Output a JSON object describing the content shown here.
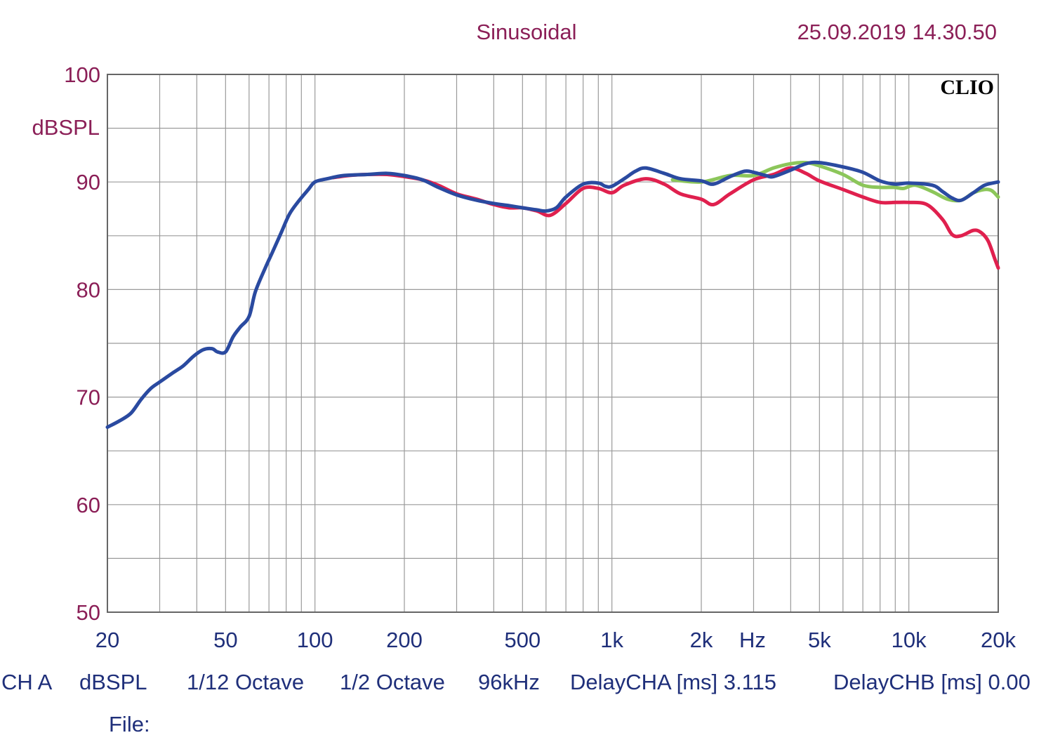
{
  "header": {
    "mode": "Sinusoidal",
    "timestamp": "25.09.2019 14.30.50"
  },
  "brand": "CLIO",
  "footer": {
    "items": [
      "CH A",
      "dBSPL",
      "1/12 Octave",
      "1/2 Octave",
      "96kHz",
      "DelayCHA [ms] 3.115",
      "DelayCHB [ms] 0.00"
    ],
    "file_label": "File:"
  },
  "chart_data": {
    "type": "line",
    "ylabel": "dBSPL",
    "xlabel": "Hz",
    "x_scale": "log",
    "xlim": [
      20,
      20000
    ],
    "ylim": [
      50,
      100
    ],
    "grid": true,
    "y_ticks": [
      {
        "value": 100,
        "label": "100"
      },
      {
        "value": 90,
        "label": "90"
      },
      {
        "value": 80,
        "label": "80"
      },
      {
        "value": 70,
        "label": "70"
      },
      {
        "value": 60,
        "label": "60"
      },
      {
        "value": 50,
        "label": "50"
      }
    ],
    "x_ticks": [
      {
        "value": 20,
        "label": "20"
      },
      {
        "value": 50,
        "label": "50"
      },
      {
        "value": 100,
        "label": "100"
      },
      {
        "value": 200,
        "label": "200"
      },
      {
        "value": 500,
        "label": "500"
      },
      {
        "value": 1000,
        "label": "1k"
      },
      {
        "value": 2000,
        "label": "2k"
      },
      {
        "value": 5000,
        "label": "5k"
      },
      {
        "value": 10000,
        "label": "10k"
      },
      {
        "value": 20000,
        "label": "20k"
      }
    ],
    "colors": {
      "grid": "#9a9a9a",
      "frame": "#666666",
      "blue": "#2a4aa0",
      "red": "#e0204e",
      "green": "#8cc65a"
    },
    "series": [
      {
        "color": "#8cc65a",
        "points": [
          [
            1600,
            90.2
          ],
          [
            2000,
            90.0
          ],
          [
            2500,
            90.6
          ],
          [
            3000,
            90.6
          ],
          [
            3500,
            91.3
          ],
          [
            4000,
            91.7
          ],
          [
            4500,
            91.8
          ],
          [
            5000,
            91.5
          ],
          [
            6000,
            90.7
          ],
          [
            7000,
            89.7
          ],
          [
            8000,
            89.5
          ],
          [
            8900,
            89.5
          ],
          [
            9600,
            89.4
          ],
          [
            10500,
            89.7
          ],
          [
            12000,
            89.1
          ],
          [
            13500,
            88.4
          ],
          [
            15000,
            88.3
          ],
          [
            16500,
            89.0
          ],
          [
            18000,
            89.3
          ],
          [
            19000,
            89.2
          ],
          [
            20000,
            88.6
          ]
        ]
      },
      {
        "color": "#e0204e",
        "points": [
          [
            115,
            90.4
          ],
          [
            130,
            90.6
          ],
          [
            150,
            90.7
          ],
          [
            175,
            90.7
          ],
          [
            200,
            90.5
          ],
          [
            230,
            90.2
          ],
          [
            260,
            89.7
          ],
          [
            300,
            88.9
          ],
          [
            350,
            88.4
          ],
          [
            400,
            87.9
          ],
          [
            450,
            87.6
          ],
          [
            500,
            87.6
          ],
          [
            560,
            87.3
          ],
          [
            620,
            86.9
          ],
          [
            700,
            88.0
          ],
          [
            800,
            89.4
          ],
          [
            900,
            89.4
          ],
          [
            1000,
            89.0
          ],
          [
            1100,
            89.7
          ],
          [
            1300,
            90.3
          ],
          [
            1500,
            89.8
          ],
          [
            1700,
            88.9
          ],
          [
            2000,
            88.4
          ],
          [
            2200,
            87.9
          ],
          [
            2500,
            88.9
          ],
          [
            3000,
            90.2
          ],
          [
            3500,
            90.7
          ],
          [
            4000,
            91.3
          ],
          [
            4500,
            90.8
          ],
          [
            5000,
            90.1
          ],
          [
            6000,
            89.3
          ],
          [
            7000,
            88.6
          ],
          [
            8000,
            88.1
          ],
          [
            9000,
            88.1
          ],
          [
            10000,
            88.1
          ],
          [
            11500,
            87.9
          ],
          [
            13000,
            86.5
          ],
          [
            14000,
            85.1
          ],
          [
            15000,
            85.0
          ],
          [
            16500,
            85.5
          ],
          [
            17500,
            85.3
          ],
          [
            18500,
            84.5
          ],
          [
            19500,
            82.8
          ],
          [
            20000,
            82.0
          ]
        ]
      },
      {
        "color": "#2a4aa0",
        "points": [
          [
            20,
            67.2
          ],
          [
            22,
            67.8
          ],
          [
            24,
            68.5
          ],
          [
            26,
            69.8
          ],
          [
            28,
            70.8
          ],
          [
            30,
            71.4
          ],
          [
            33,
            72.2
          ],
          [
            36,
            72.9
          ],
          [
            39,
            73.8
          ],
          [
            42,
            74.4
          ],
          [
            45,
            74.5
          ],
          [
            47,
            74.2
          ],
          [
            50,
            74.2
          ],
          [
            53,
            75.6
          ],
          [
            56,
            76.5
          ],
          [
            60,
            77.5
          ],
          [
            63,
            79.8
          ],
          [
            68,
            82.0
          ],
          [
            72,
            83.5
          ],
          [
            77,
            85.3
          ],
          [
            82,
            87.0
          ],
          [
            88,
            88.2
          ],
          [
            95,
            89.3
          ],
          [
            100,
            90.0
          ],
          [
            110,
            90.3
          ],
          [
            125,
            90.6
          ],
          [
            150,
            90.7
          ],
          [
            175,
            90.8
          ],
          [
            200,
            90.6
          ],
          [
            230,
            90.2
          ],
          [
            260,
            89.5
          ],
          [
            300,
            88.8
          ],
          [
            350,
            88.3
          ],
          [
            400,
            88.0
          ],
          [
            450,
            87.8
          ],
          [
            500,
            87.6
          ],
          [
            560,
            87.4
          ],
          [
            600,
            87.3
          ],
          [
            650,
            87.6
          ],
          [
            700,
            88.6
          ],
          [
            800,
            89.8
          ],
          [
            900,
            89.9
          ],
          [
            950,
            89.6
          ],
          [
            1000,
            89.6
          ],
          [
            1100,
            90.3
          ],
          [
            1200,
            91.0
          ],
          [
            1300,
            91.3
          ],
          [
            1500,
            90.8
          ],
          [
            1700,
            90.3
          ],
          [
            2000,
            90.1
          ],
          [
            2200,
            89.8
          ],
          [
            2500,
            90.5
          ],
          [
            2800,
            91.0
          ],
          [
            3000,
            90.9
          ],
          [
            3300,
            90.6
          ],
          [
            3500,
            90.5
          ],
          [
            4000,
            91.1
          ],
          [
            4500,
            91.7
          ],
          [
            5000,
            91.8
          ],
          [
            6000,
            91.4
          ],
          [
            7000,
            90.9
          ],
          [
            8000,
            90.1
          ],
          [
            9000,
            89.8
          ],
          [
            10000,
            89.9
          ],
          [
            12000,
            89.7
          ],
          [
            13000,
            89.1
          ],
          [
            14000,
            88.5
          ],
          [
            15000,
            88.3
          ],
          [
            16500,
            89.0
          ],
          [
            18000,
            89.7
          ],
          [
            20000,
            90.0
          ]
        ]
      }
    ]
  }
}
